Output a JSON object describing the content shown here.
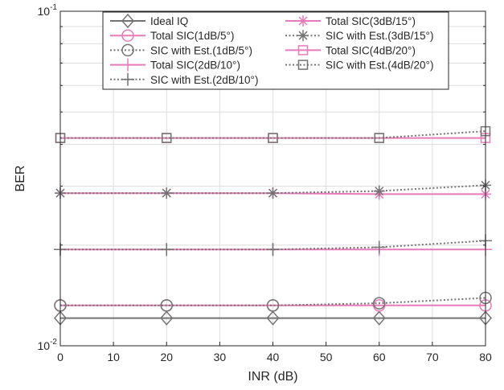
{
  "chart_data": {
    "type": "line",
    "xlabel": "INR (dB)",
    "ylabel": "BER",
    "xlim": [
      0,
      80
    ],
    "ylim": [
      0.01,
      0.1
    ],
    "yscale": "log",
    "x_ticks": [
      "0",
      "10",
      "20",
      "30",
      "40",
      "50",
      "60",
      "70",
      "80"
    ],
    "y_ticks": [
      {
        "base": "10",
        "exp": "-2"
      },
      {
        "base": "10",
        "exp": "-1"
      }
    ],
    "grid": true,
    "legend_position": "top",
    "colors": {
      "gray": "#737373",
      "pink": "#e87ab9",
      "axis": "#262626",
      "grid": "#dedede"
    },
    "x": [
      0,
      20,
      40,
      60,
      80
    ],
    "series": [
      {
        "name": "Ideal IQ",
        "color": "#737373",
        "marker": "diamond",
        "dash": "solid",
        "values": [
          0.0121,
          0.0121,
          0.0121,
          0.0121,
          0.0121
        ]
      },
      {
        "name": "Total SIC(1dB/5°)",
        "color": "#e87ab9",
        "marker": "circle",
        "dash": "solid",
        "values": [
          0.0132,
          0.0132,
          0.0132,
          0.0132,
          0.0132
        ]
      },
      {
        "name": "SIC with Est.(1dB/5°)",
        "color": "#737373",
        "marker": "circle",
        "dash": "dotted",
        "values": [
          0.0132,
          0.0132,
          0.0132,
          0.0134,
          0.0139
        ]
      },
      {
        "name": "Total SIC(2dB/10°)",
        "color": "#e87ab9",
        "marker": "plus",
        "dash": "solid",
        "values": [
          0.0194,
          0.0194,
          0.0194,
          0.0194,
          0.0194
        ]
      },
      {
        "name": "SIC with Est.(2dB/10°)",
        "color": "#737373",
        "marker": "plus",
        "dash": "dotted",
        "values": [
          0.0194,
          0.0194,
          0.0194,
          0.0197,
          0.0206
        ]
      },
      {
        "name": "Total SIC(3dB/15°)",
        "color": "#e87ab9",
        "marker": "asterisk",
        "dash": "solid",
        "values": [
          0.0286,
          0.0286,
          0.0286,
          0.0284,
          0.0284
        ]
      },
      {
        "name": "SIC with Est.(3dB/15°)",
        "color": "#737373",
        "marker": "asterisk",
        "dash": "dotted",
        "values": [
          0.0286,
          0.0286,
          0.0286,
          0.029,
          0.0302
        ]
      },
      {
        "name": "Total SIC(4dB/20°)",
        "color": "#e87ab9",
        "marker": "square",
        "dash": "solid",
        "values": [
          0.0418,
          0.0418,
          0.0418,
          0.0418,
          0.0418
        ]
      },
      {
        "name": "SIC with Est.(4dB/20°)",
        "color": "#737373",
        "marker": "square",
        "dash": "dotted",
        "values": [
          0.0418,
          0.0418,
          0.0418,
          0.0418,
          0.0438
        ]
      }
    ]
  }
}
